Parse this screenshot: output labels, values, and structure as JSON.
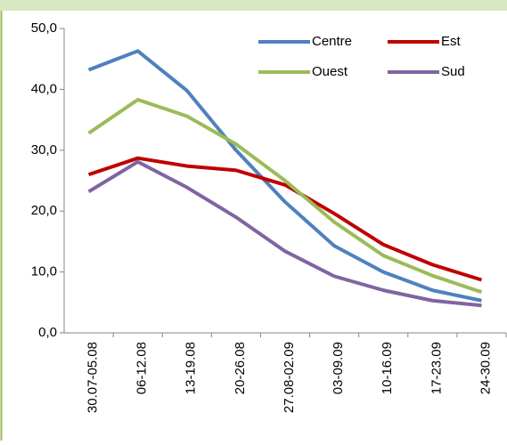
{
  "chart_data": {
    "type": "line",
    "categories": [
      "30.07-05.08",
      "06-12.08",
      "13-19.08",
      "20-26.08",
      "27.08-02.09",
      "03-09.09",
      "10-16.09",
      "17-23.09",
      "24-30.09"
    ],
    "series": [
      {
        "name": "Centre",
        "color": "#4f81bd",
        "values": [
          43.2,
          46.3,
          39.8,
          30.0,
          21.5,
          14.3,
          10.0,
          7.0,
          5.3
        ]
      },
      {
        "name": "Est",
        "color": "#c00000",
        "values": [
          26.0,
          28.7,
          27.4,
          26.7,
          24.3,
          19.6,
          14.5,
          11.2,
          8.7
        ]
      },
      {
        "name": "Ouest",
        "color": "#9bbb59",
        "values": [
          32.8,
          38.3,
          35.6,
          31.0,
          25.0,
          18.2,
          12.7,
          9.4,
          6.7
        ]
      },
      {
        "name": "Sud",
        "color": "#8064a2",
        "values": [
          23.2,
          28.1,
          23.9,
          19.0,
          13.4,
          9.3,
          7.0,
          5.3,
          4.5
        ]
      }
    ],
    "ylim": [
      0,
      50
    ],
    "yticks": [
      {
        "value": 0,
        "label": "0,0"
      },
      {
        "value": 10,
        "label": "10,0"
      },
      {
        "value": 20,
        "label": "20,0"
      },
      {
        "value": 30,
        "label": "30,0"
      },
      {
        "value": 40,
        "label": "40,0"
      },
      {
        "value": 50,
        "label": "50,0"
      }
    ],
    "grid": false,
    "legend": "top-right"
  }
}
